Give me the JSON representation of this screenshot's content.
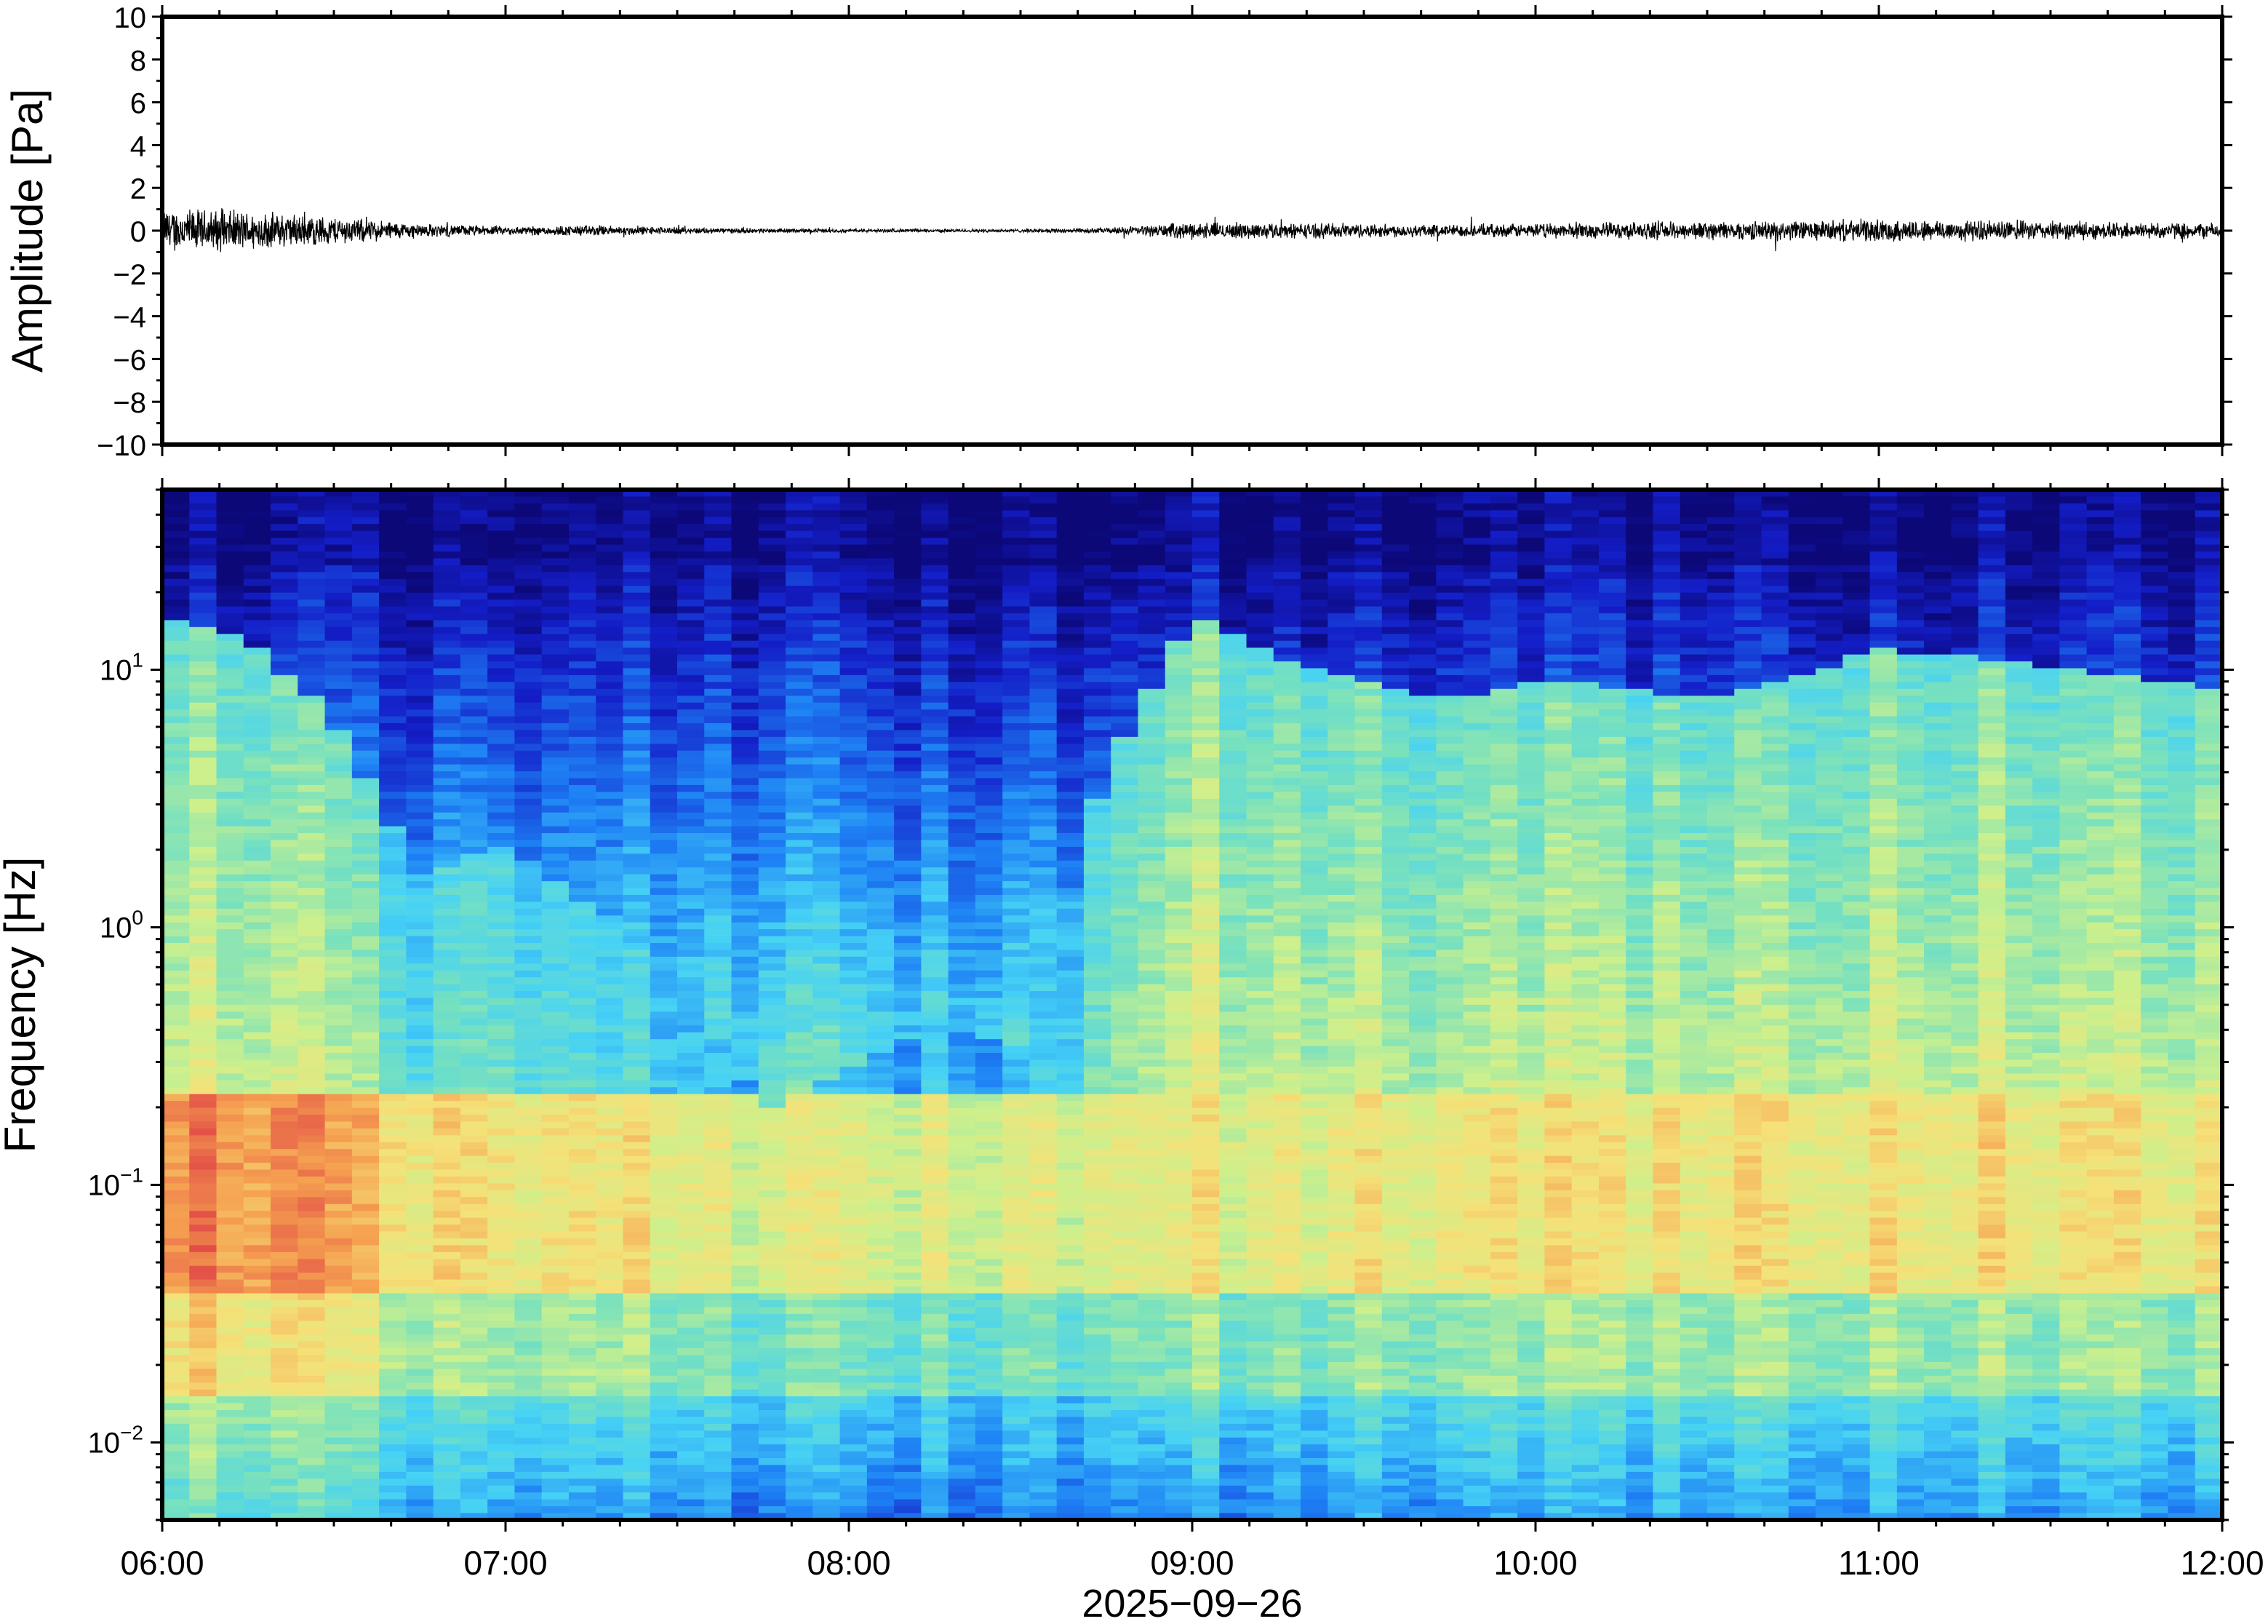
{
  "chart_data": [
    {
      "type": "line",
      "title": "",
      "xlabel": "",
      "ylabel": "Amplitude [Pa]",
      "ylim": [
        -10,
        10
      ],
      "y_ticks": [
        "−10",
        "−8",
        "−6",
        "−4",
        "−2",
        "0",
        "2",
        "4",
        "6",
        "8",
        "10"
      ],
      "x_range": [
        "06:00",
        "12:00"
      ],
      "series": [
        {
          "x": [
            "06:00",
            "06:15",
            "06:30",
            "06:45",
            "07:00",
            "07:15",
            "07:30",
            "07:45",
            "08:00",
            "08:15",
            "08:30",
            "08:45",
            "09:00",
            "09:15",
            "09:30",
            "09:45",
            "10:00",
            "10:15",
            "10:30",
            "10:45",
            "11:00",
            "11:15",
            "11:30",
            "11:45",
            "12:00"
          ],
          "envelope": [
            0.8,
            0.7,
            0.5,
            0.25,
            0.15,
            0.2,
            0.12,
            0.08,
            0.06,
            0.06,
            0.06,
            0.1,
            0.3,
            0.28,
            0.25,
            0.22,
            0.25,
            0.3,
            0.32,
            0.35,
            0.4,
            0.38,
            0.33,
            0.3,
            0.28
          ]
        }
      ]
    },
    {
      "type": "heatmap",
      "title": "",
      "xlabel": "2025−09−26",
      "ylabel": "Frequency [Hz]",
      "y_scale": "log",
      "ylim": [
        0.005,
        50
      ],
      "y_ticks": [
        {
          "base": "10",
          "exp": "−2"
        },
        {
          "base": "10",
          "exp": "−1"
        },
        {
          "base": "10",
          "exp": "0"
        },
        {
          "base": "10",
          "exp": "1"
        }
      ],
      "x_tick_labels": [
        "06:00",
        "07:00",
        "08:00",
        "09:00",
        "10:00",
        "11:00",
        "12:00"
      ],
      "colormap": "jet",
      "colorbar": false
    }
  ],
  "colors": {
    "frame": "#000000",
    "trace": "#000000",
    "background": "#ffffff"
  }
}
